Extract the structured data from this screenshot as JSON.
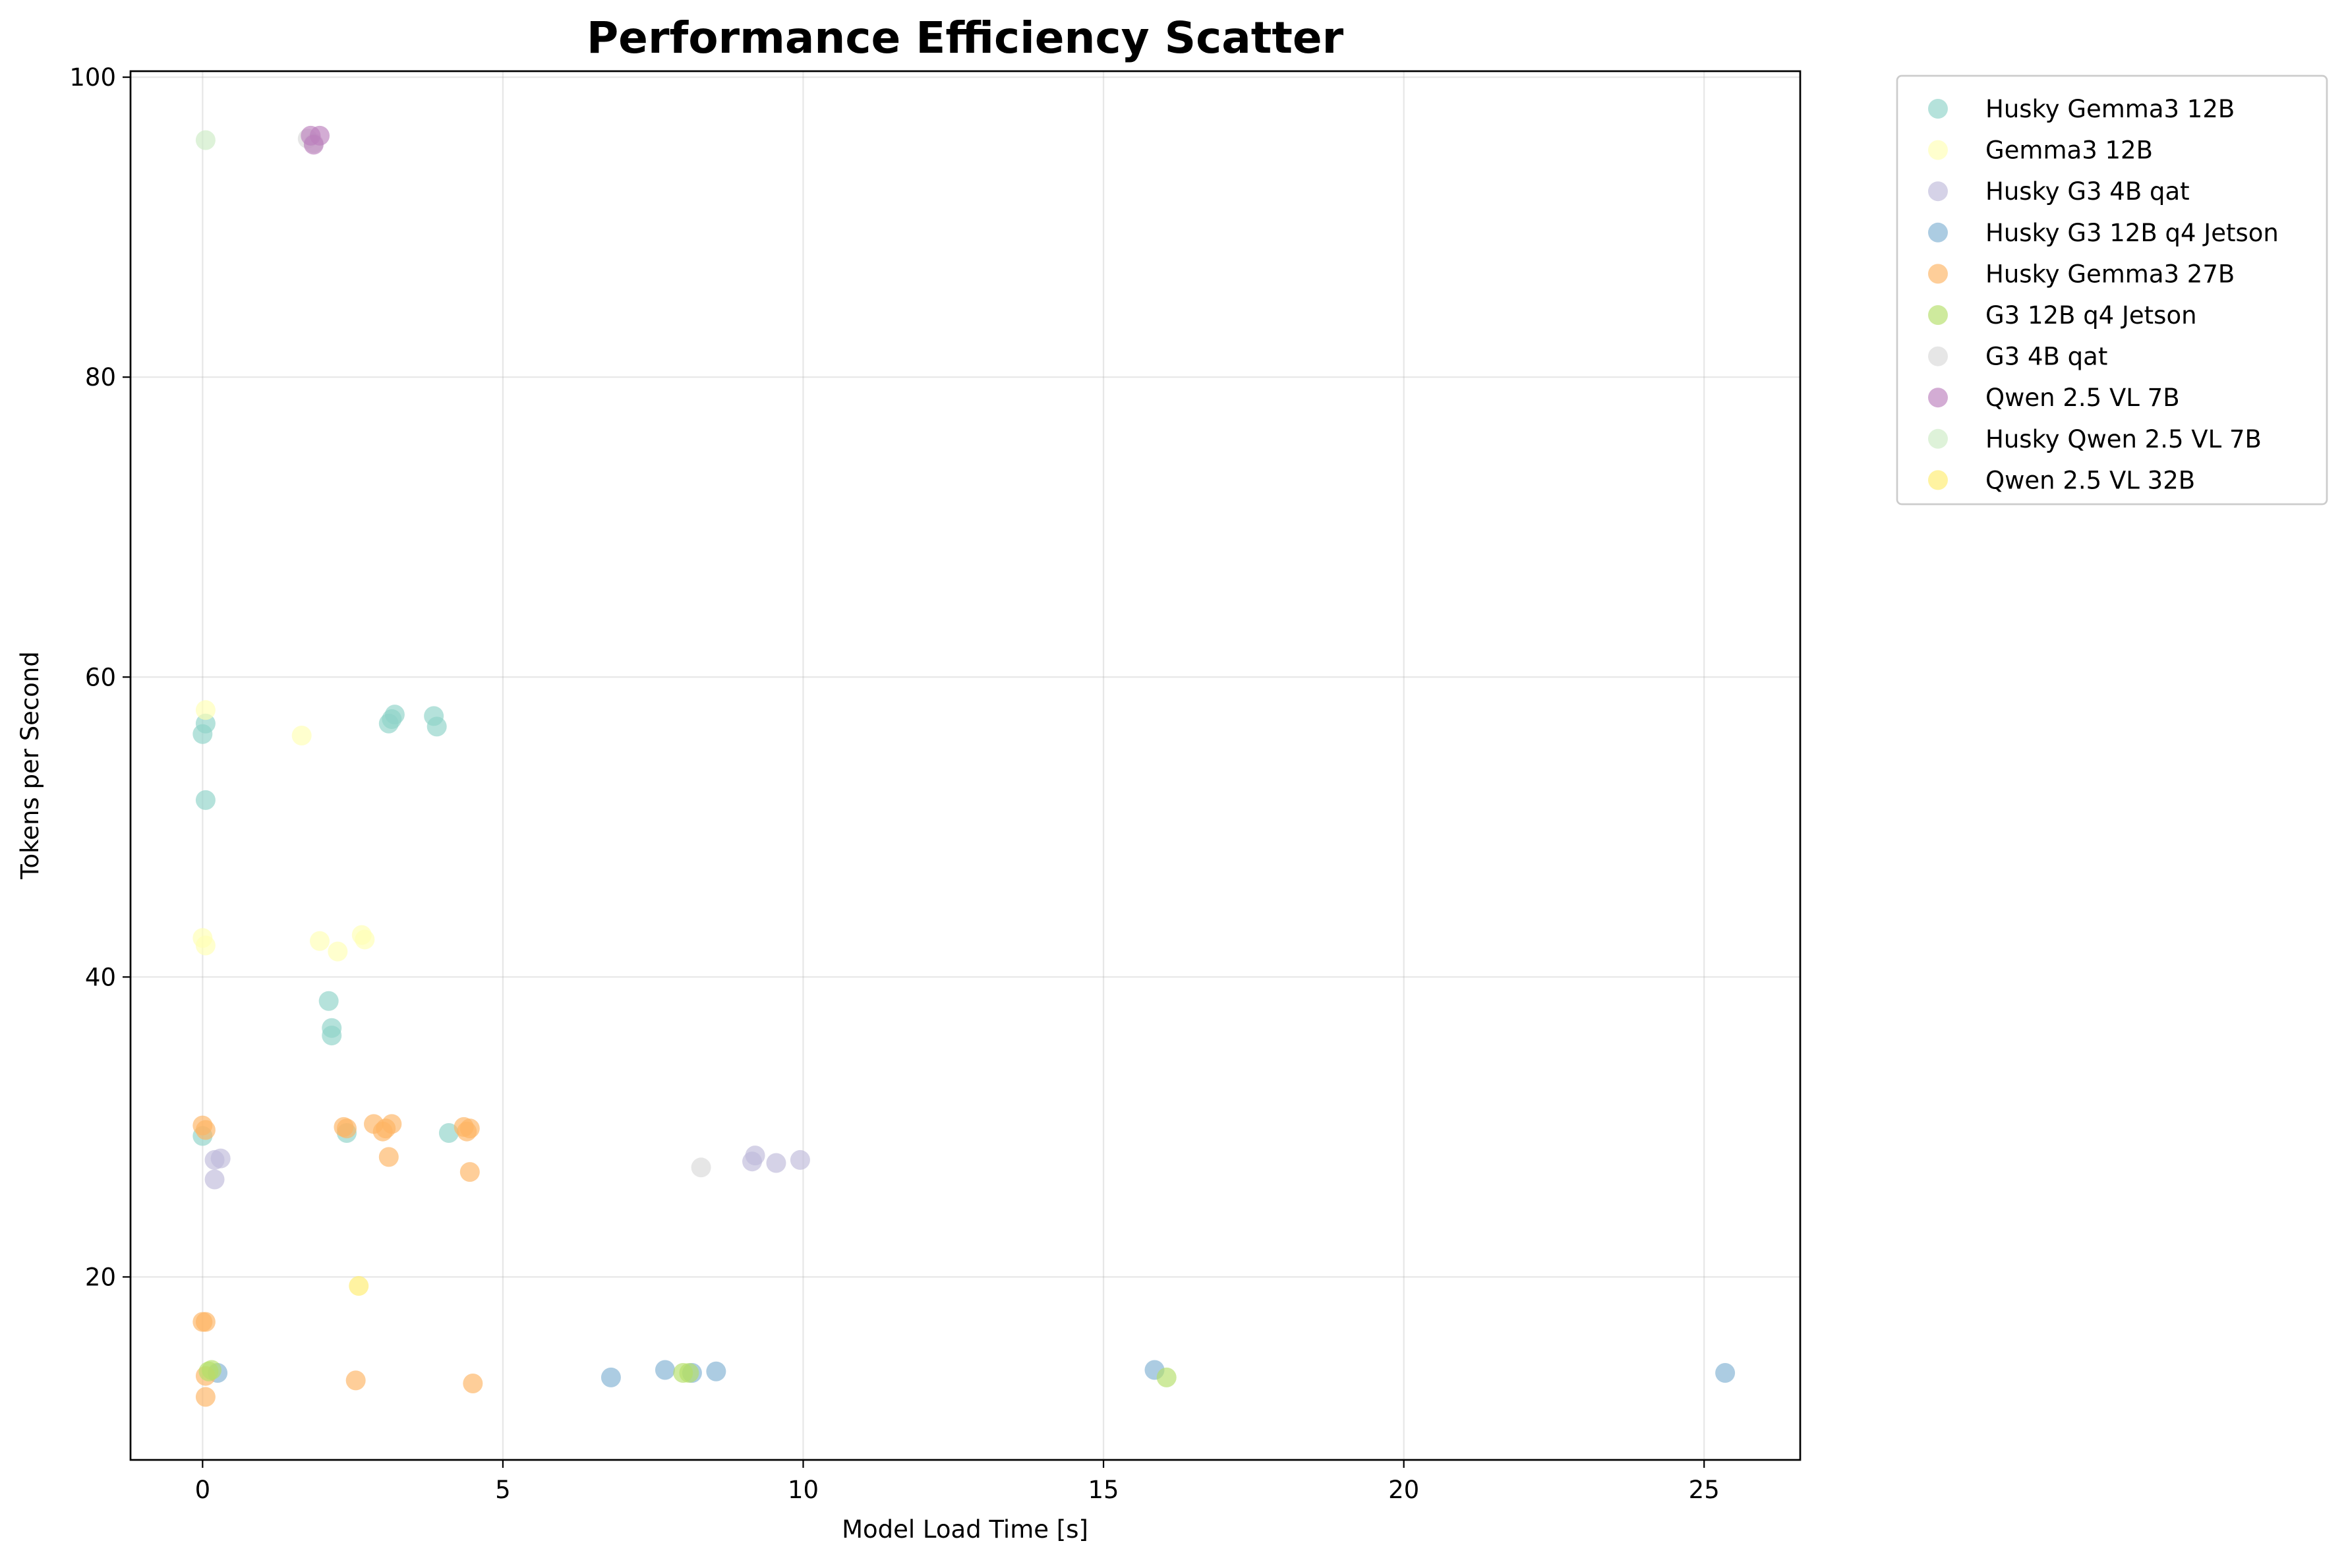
{
  "chart_data": {
    "type": "scatter",
    "title": "Performance Efficiency Scatter",
    "xlabel": "Model Load Time [s]",
    "ylabel": "Tokens per Second",
    "xlim": [
      -1.2,
      26.6
    ],
    "ylim": [
      7.8,
      100.4
    ],
    "xticks": [
      0,
      5,
      10,
      15,
      20,
      25
    ],
    "yticks": [
      20,
      40,
      60,
      80,
      100
    ],
    "grid": true,
    "legend_position": "outside upper right",
    "marker_opacity": 0.65,
    "series": [
      {
        "name": "Husky Gemma3 12B",
        "color": "#8dd3c7",
        "points": [
          [
            0.0,
            56.2
          ],
          [
            0.05,
            56.9
          ],
          [
            0.05,
            51.8
          ],
          [
            0.0,
            29.4
          ],
          [
            2.1,
            38.4
          ],
          [
            2.15,
            36.6
          ],
          [
            2.15,
            36.1
          ],
          [
            2.4,
            29.6
          ],
          [
            3.1,
            56.9
          ],
          [
            3.15,
            57.2
          ],
          [
            3.2,
            57.5
          ],
          [
            3.85,
            57.4
          ],
          [
            3.9,
            56.7
          ],
          [
            4.1,
            29.6
          ]
        ]
      },
      {
        "name": "Gemma3 12B",
        "color": "#ffffb3",
        "points": [
          [
            0.05,
            57.8
          ],
          [
            0.0,
            42.6
          ],
          [
            0.05,
            42.1
          ],
          [
            1.65,
            56.1
          ],
          [
            1.95,
            42.4
          ],
          [
            2.25,
            41.7
          ],
          [
            2.65,
            42.8
          ],
          [
            2.7,
            42.5
          ]
        ]
      },
      {
        "name": "Husky G3 4B qat",
        "color": "#bebada",
        "points": [
          [
            0.2,
            27.8
          ],
          [
            0.3,
            27.9
          ],
          [
            0.2,
            26.5
          ],
          [
            9.15,
            27.7
          ],
          [
            9.2,
            28.1
          ],
          [
            9.55,
            27.6
          ],
          [
            9.95,
            27.8
          ]
        ]
      },
      {
        "name": "Husky G3 12B q4 Jetson",
        "color": "#80b1d3",
        "points": [
          [
            0.25,
            13.6
          ],
          [
            6.8,
            13.3
          ],
          [
            7.7,
            13.8
          ],
          [
            8.15,
            13.6
          ],
          [
            8.55,
            13.7
          ],
          [
            15.85,
            13.8
          ],
          [
            25.35,
            13.6
          ]
        ]
      },
      {
        "name": "Husky Gemma3 27B",
        "color": "#fdb462",
        "points": [
          [
            0.0,
            30.1
          ],
          [
            0.05,
            29.8
          ],
          [
            0.0,
            17.0
          ],
          [
            0.05,
            17.0
          ],
          [
            0.05,
            13.4
          ],
          [
            0.05,
            12.0
          ],
          [
            2.35,
            30.0
          ],
          [
            2.4,
            29.9
          ],
          [
            2.55,
            13.1
          ],
          [
            2.85,
            30.2
          ],
          [
            3.0,
            29.7
          ],
          [
            3.05,
            29.9
          ],
          [
            3.1,
            28.0
          ],
          [
            3.15,
            30.2
          ],
          [
            4.35,
            30.0
          ],
          [
            4.4,
            29.7
          ],
          [
            4.45,
            29.9
          ],
          [
            4.45,
            27.0
          ],
          [
            4.5,
            12.9
          ]
        ]
      },
      {
        "name": "G3 12B q4 Jetson",
        "color": "#b3de69",
        "points": [
          [
            0.1,
            13.7
          ],
          [
            0.15,
            13.8
          ],
          [
            8.0,
            13.6
          ],
          [
            8.1,
            13.6
          ],
          [
            16.05,
            13.3
          ]
        ]
      },
      {
        "name": "G3 4B qat",
        "color": "#d9d9d9",
        "points": [
          [
            1.75,
            95.9
          ],
          [
            1.85,
            95.6
          ],
          [
            8.3,
            27.3
          ]
        ]
      },
      {
        "name": "Qwen 2.5 VL 7B",
        "color": "#bc80bd",
        "points": [
          [
            1.8,
            96.1
          ],
          [
            1.85,
            95.5
          ],
          [
            1.95,
            96.1
          ]
        ]
      },
      {
        "name": "Husky Qwen 2.5 VL 7B",
        "color": "#ccebc5",
        "points": [
          [
            0.05,
            95.8
          ]
        ]
      },
      {
        "name": "Qwen 2.5 VL 32B",
        "color": "#ffed6f",
        "points": [
          [
            2.6,
            19.4
          ]
        ]
      }
    ]
  }
}
